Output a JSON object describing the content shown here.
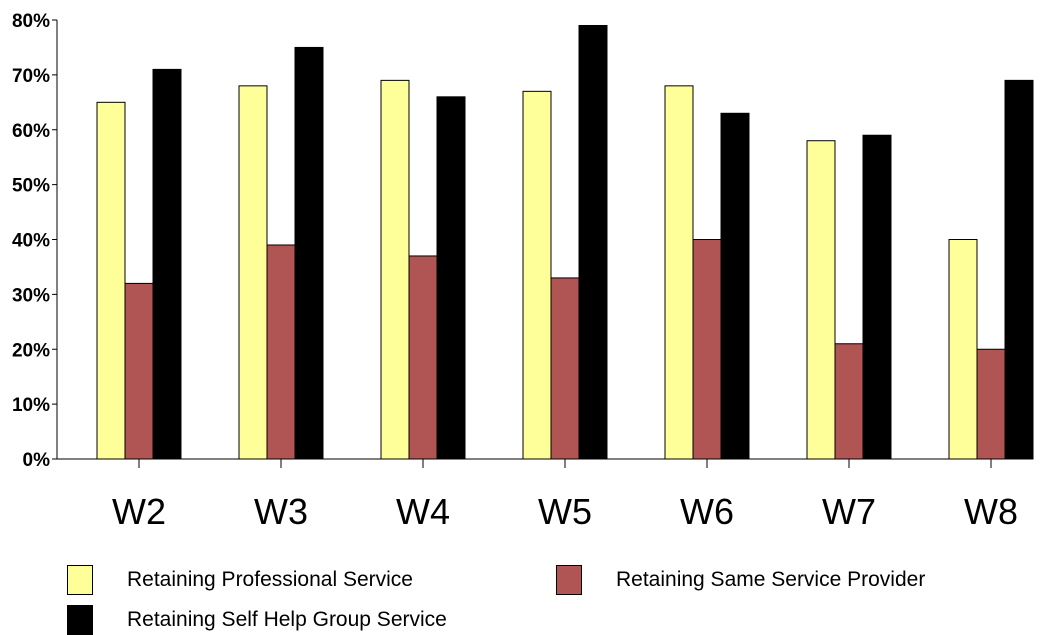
{
  "chart_data": {
    "type": "bar",
    "title": "",
    "xlabel": "",
    "ylabel": "",
    "categories": [
      "W2",
      "W3",
      "W4",
      "W5",
      "W6",
      "W7",
      "W8"
    ],
    "ylim": [
      0,
      80
    ],
    "yticks": [
      "0%",
      "10%",
      "20%",
      "30%",
      "40%",
      "50%",
      "60%",
      "70%",
      "80%"
    ],
    "grid": false,
    "legend_position": "bottom",
    "series": [
      {
        "name": "Retaining Professional Service",
        "color": "#ffff99",
        "values": [
          65,
          68,
          69,
          67,
          68,
          58,
          40
        ]
      },
      {
        "name": "Retaining Same Service Provider",
        "color": "#b05454",
        "values": [
          32,
          39,
          37,
          33,
          40,
          21,
          20
        ]
      },
      {
        "name": "Retaining Self Help Group Service",
        "color": "#000000",
        "values": [
          71,
          75,
          66,
          79,
          63,
          59,
          69
        ]
      }
    ]
  }
}
